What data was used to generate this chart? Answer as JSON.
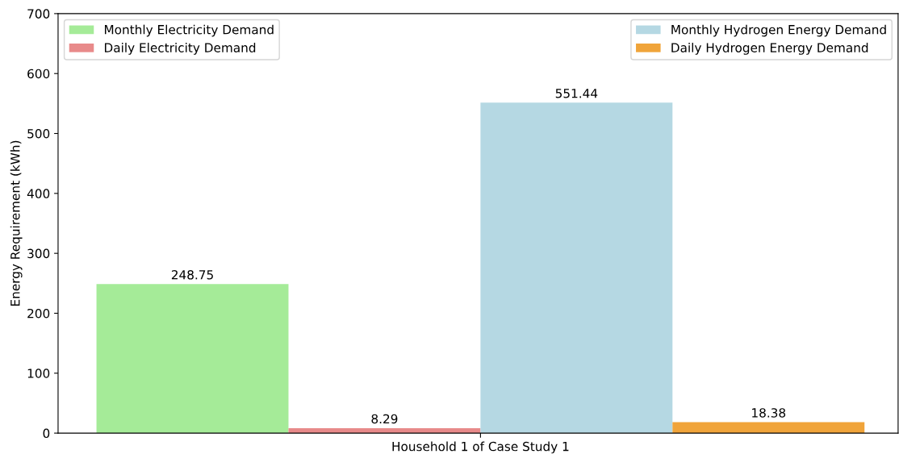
{
  "chart_data": {
    "type": "bar",
    "categories": [
      "Household 1 of Case Study 1"
    ],
    "ylabel": "Energy Requirement (kWh)",
    "ylim": [
      0,
      700
    ],
    "yticks": [
      0,
      100,
      200,
      300,
      400,
      500,
      600,
      700
    ],
    "data_labels": true,
    "legend": "top",
    "grid": false,
    "series": [
      {
        "name": "Monthly Electricity Demand",
        "color": "#a5eb98",
        "values": [
          248.75
        ]
      },
      {
        "name": "Daily Electricity Demand",
        "color": "#e88a8a",
        "values": [
          8.29
        ]
      },
      {
        "name": "Monthly Hydrogen Energy Demand",
        "color": "#b5d8e3",
        "values": [
          551.44
        ]
      },
      {
        "name": "Daily Hydrogen Energy Demand",
        "color": "#f0a43a",
        "values": [
          18.38
        ]
      }
    ]
  }
}
